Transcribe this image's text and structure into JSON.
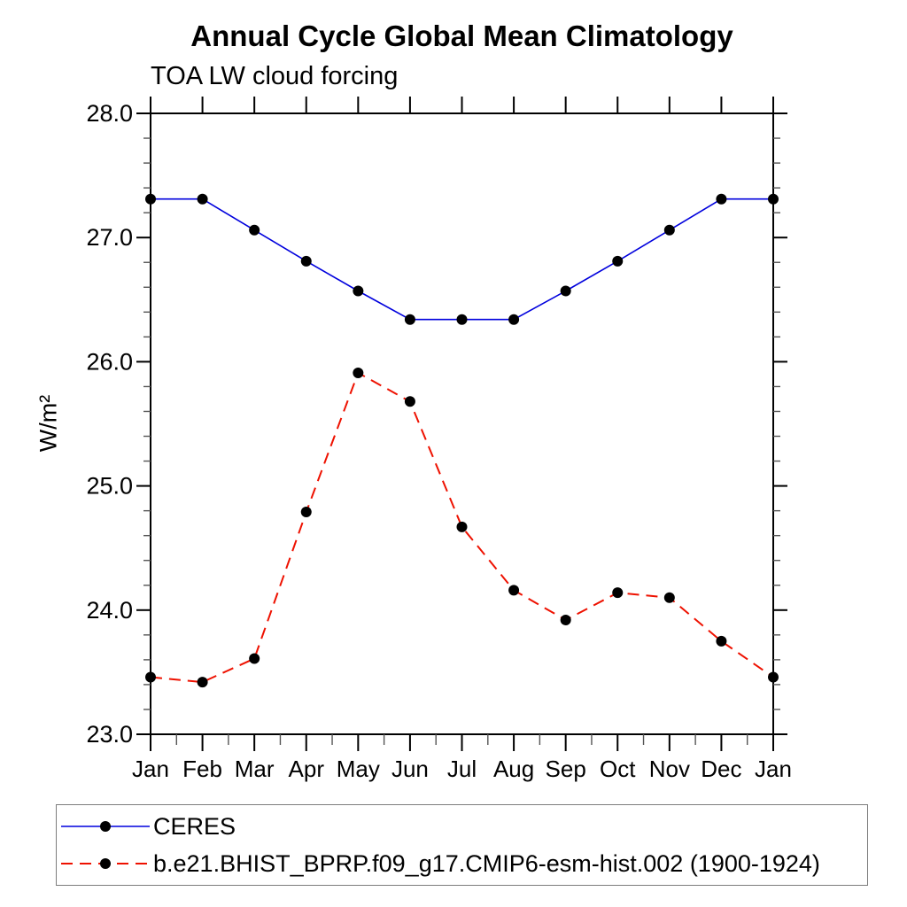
{
  "title": "Annual Cycle Global Mean Climatology",
  "subtitle": "TOA LW cloud forcing",
  "ylabel": "W/m²",
  "chart_data": {
    "type": "line",
    "title": "Annual Cycle Global Mean Climatology",
    "subtitle": "TOA LW cloud forcing",
    "ylabel": "W/m²",
    "xlabel": "",
    "categories": [
      "Jan",
      "Feb",
      "Mar",
      "Apr",
      "May",
      "Jun",
      "Jul",
      "Aug",
      "Sep",
      "Oct",
      "Nov",
      "Dec",
      "Jan"
    ],
    "y_tick_labels": [
      "23.0",
      "24.0",
      "25.0",
      "26.0",
      "27.0",
      "28.0"
    ],
    "y_ticks": [
      23.0,
      24.0,
      25.0,
      26.0,
      27.0,
      28.0
    ],
    "ylim": [
      23.0,
      28.0
    ],
    "y_minor_step": 0.2,
    "grid": false,
    "legend_position": "bottom-left-box",
    "marker": "filled-circle",
    "marker_color": "#000000",
    "axis_color": "#000000",
    "series": [
      {
        "name": "CERES",
        "color": "#0000dd",
        "line_style": "solid",
        "values": [
          27.31,
          27.31,
          27.06,
          26.81,
          26.57,
          26.34,
          26.34,
          26.34,
          26.57,
          26.81,
          27.06,
          27.31,
          27.31
        ]
      },
      {
        "name": "b.e21.BHIST_BPRP.f09_g17.CMIP6-esm-hist.002 (1900-1924)",
        "color": "#ee1100",
        "line_style": "dashed",
        "values": [
          23.46,
          23.42,
          23.61,
          24.79,
          25.91,
          25.68,
          24.67,
          24.16,
          23.92,
          24.14,
          24.1,
          23.75,
          23.46
        ]
      }
    ]
  }
}
